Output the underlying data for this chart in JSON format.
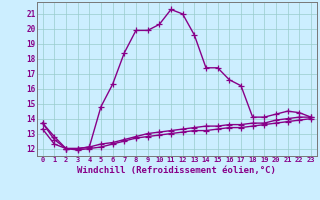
{
  "xlabel": "Windchill (Refroidissement éolien,°C)",
  "x_values": [
    0,
    1,
    2,
    3,
    4,
    5,
    6,
    7,
    8,
    9,
    10,
    11,
    12,
    13,
    14,
    15,
    16,
    17,
    18,
    19,
    20,
    21,
    22,
    23
  ],
  "line1": [
    13.7,
    12.8,
    12.0,
    12.0,
    12.1,
    14.8,
    16.3,
    18.4,
    19.9,
    19.9,
    20.3,
    21.3,
    21.0,
    19.6,
    17.4,
    17.4,
    16.6,
    16.2,
    14.1,
    14.1,
    14.3,
    14.5,
    14.4,
    14.1
  ],
  "line2": [
    13.7,
    12.6,
    12.0,
    12.0,
    12.1,
    12.3,
    12.4,
    12.6,
    12.8,
    13.0,
    13.1,
    13.2,
    13.3,
    13.4,
    13.5,
    13.5,
    13.6,
    13.6,
    13.7,
    13.7,
    13.9,
    14.0,
    14.1,
    14.1
  ],
  "line3": [
    13.3,
    12.3,
    12.0,
    11.9,
    12.0,
    12.1,
    12.3,
    12.5,
    12.7,
    12.8,
    12.9,
    13.0,
    13.1,
    13.2,
    13.2,
    13.3,
    13.4,
    13.4,
    13.5,
    13.6,
    13.7,
    13.8,
    13.9,
    14.0
  ],
  "line_color": "#880088",
  "bg_color": "#cceeff",
  "grid_color": "#99cccc",
  "ylim": [
    11.5,
    21.8
  ],
  "yticks": [
    12,
    13,
    14,
    15,
    16,
    17,
    18,
    19,
    20,
    21
  ],
  "marker": "+",
  "markersize": 4,
  "linewidth": 1.0
}
